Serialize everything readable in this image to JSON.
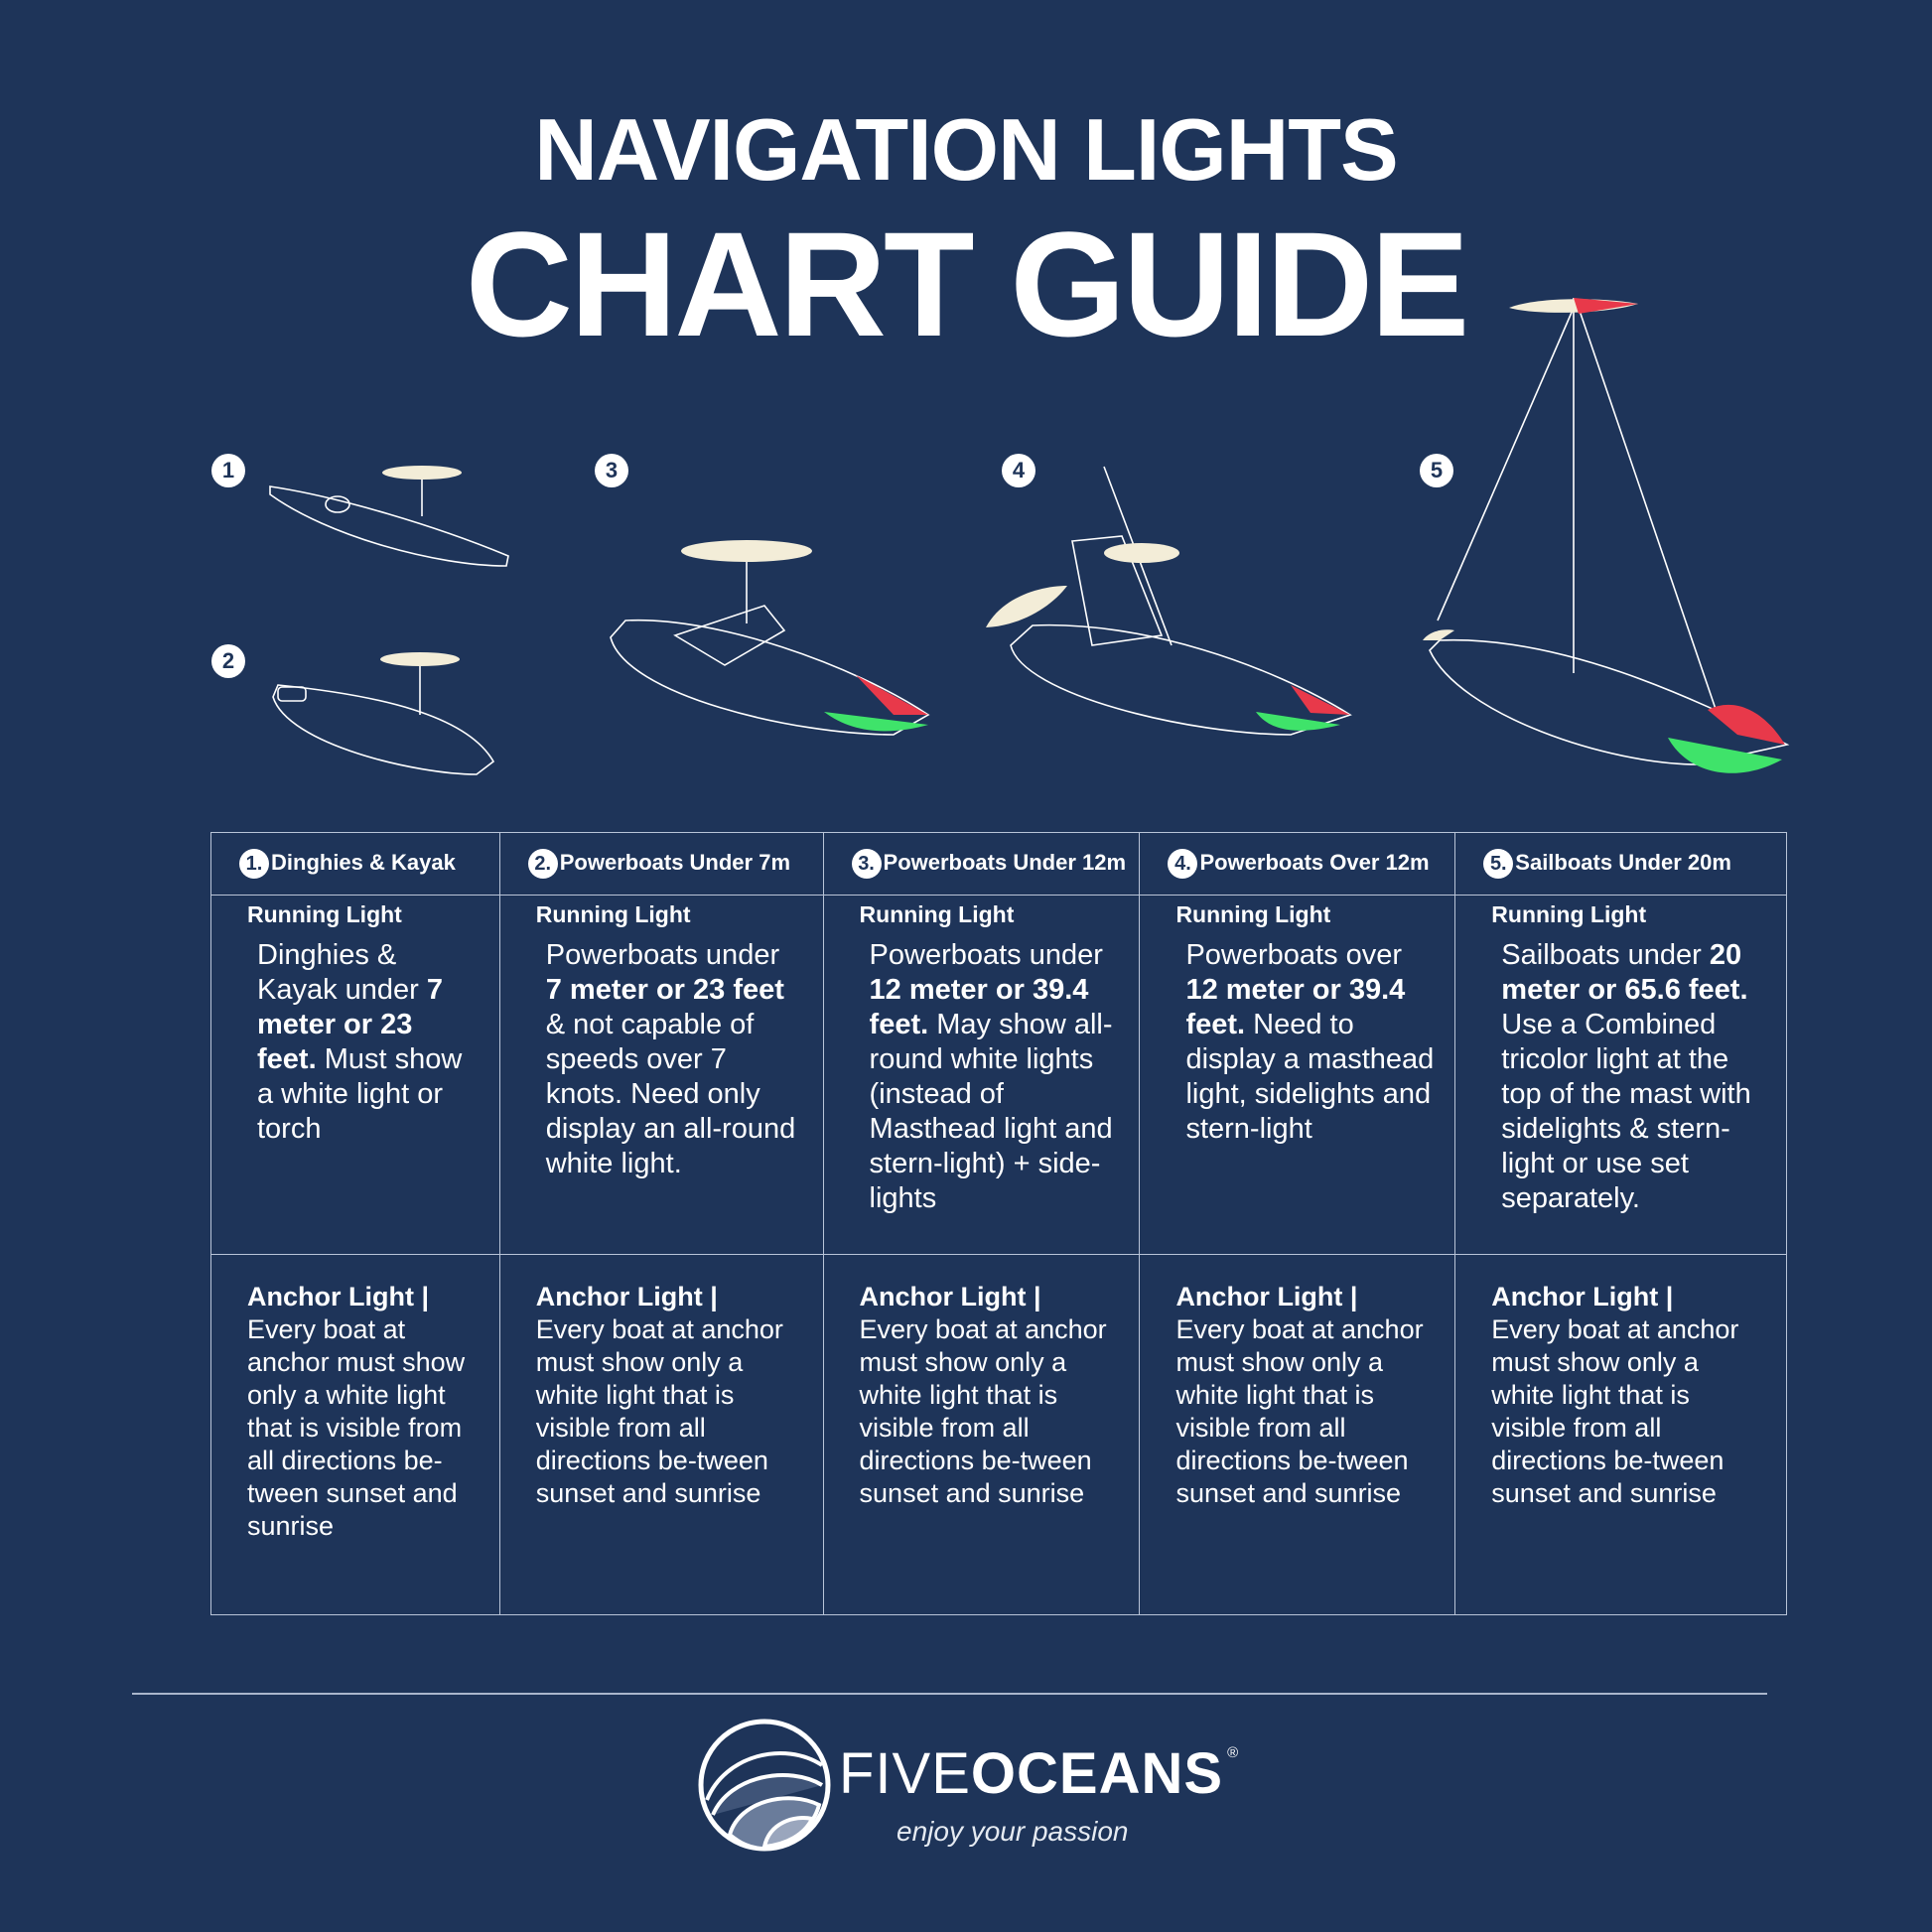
{
  "title": {
    "line1": "NAVIGATION LIGHTS",
    "line2": "CHART GUIDE"
  },
  "colors": {
    "background": "#1e3459",
    "white_light": "#f3edd8",
    "red_light": "#e8394a",
    "green_light": "#3fe36a"
  },
  "boat_numbers": [
    "1",
    "2",
    "3",
    "4",
    "5"
  ],
  "columns": [
    {
      "num": "1.",
      "header": "Dinghies & Kayak",
      "running_label": "Running Light",
      "running": [
        {
          "t": "Dinghies & Kayak under "
        },
        {
          "t": "7 meter or 23 feet.",
          "b": true
        },
        {
          "t": " Must show a white light or torch"
        }
      ],
      "anchor_label": "Anchor Light |",
      "anchor": "Every boat at anchor must show only a white light that is visible from all directions be-tween sunset and sunrise"
    },
    {
      "num": "2.",
      "header": "Powerboats Under 7m",
      "running_label": "Running Light",
      "running": [
        {
          "t": "Powerboats under "
        },
        {
          "t": "7 meter or 23 feet",
          "b": true
        },
        {
          "t": " & not capable of speeds over 7 knots. Need only display an all-round white light."
        }
      ],
      "anchor_label": "Anchor Light |",
      "anchor": "Every boat at anchor must show only a white light that is visible from all directions be-tween sunset and sunrise"
    },
    {
      "num": "3.",
      "header": "Powerboats Under 12m",
      "running_label": "Running Light",
      "running": [
        {
          "t": "Powerboats under "
        },
        {
          "t": "12 meter or 39.4 feet.",
          "b": true
        },
        {
          "t": " May show all-round white lights (instead of Masthead light and stern-light) + side-lights"
        }
      ],
      "anchor_label": "Anchor Light |",
      "anchor": "Every boat at anchor must show only a white light that is visible from all directions be-tween sunset and sunrise"
    },
    {
      "num": "4.",
      "header": "Powerboats Over 12m",
      "running_label": "Running Light",
      "running": [
        {
          "t": "Powerboats over "
        },
        {
          "t": "12 meter or 39.4 feet.",
          "b": true
        },
        {
          "t": " Need to display a masthead light, sidelights and stern-light"
        }
      ],
      "anchor_label": "Anchor Light |",
      "anchor": "Every boat at anchor must show only a white light that is visible from all directions be-tween sunset and sunrise"
    },
    {
      "num": "5.",
      "header": "Sailboats Under 20m",
      "running_label": "Running Light",
      "running": [
        {
          "t": "Sailboats under "
        },
        {
          "t": "20 meter or 65.6 feet.",
          "b": true
        },
        {
          "t": " Use a Combined tricolor light at the top of the mast with sidelights & stern-light or use set separately."
        }
      ],
      "anchor_label": "Anchor Light |",
      "anchor": "Every boat at anchor must show only a white light that is visible from all directions be-tween sunset and sunrise"
    }
  ],
  "footer": {
    "brand_light": "FIVE",
    "brand_bold": "OCEANS",
    "registered": "®",
    "tagline": "enjoy your passion"
  }
}
